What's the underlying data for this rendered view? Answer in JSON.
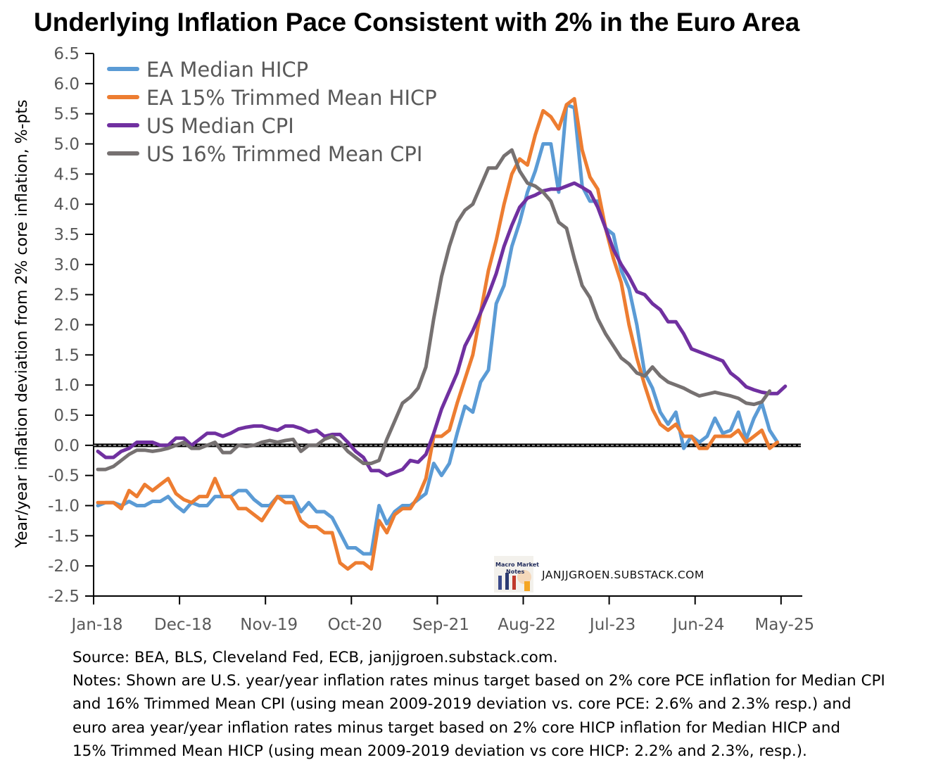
{
  "chart_data": {
    "type": "line",
    "title": "Underlying Inflation Pace Consistent with 2% in the Euro Area",
    "ylabel": "Year/year inflation deviation from 2% core inflation, %-pts",
    "xlabel": "",
    "ylim": [
      -2.5,
      6.5
    ],
    "ytick_step": 0.5,
    "ytick_labels": [
      "6.5",
      "6.0",
      "5.5",
      "5.0",
      "4.5",
      "4.0",
      "3.5",
      "3.0",
      "2.5",
      "2.0",
      "1.5",
      "1.0",
      "0.5",
      "0.0",
      "-0.5",
      "-1.0",
      "-1.5",
      "-2.0",
      "-2.5"
    ],
    "x_start": "Jan-18",
    "x_frequency": "monthly",
    "xtick_labels": [
      "Jan-18",
      "Dec-18",
      "Nov-19",
      "Oct-20",
      "Sep-21",
      "Aug-22",
      "Jul-23",
      "Jun-24",
      "May-25"
    ],
    "xtick_interval_months": 11,
    "legend_position": "top-left",
    "reference_line": 0,
    "series": [
      {
        "name": "EA Median HICP",
        "color": "#5b9bd5",
        "values": [
          -1.0,
          -0.95,
          -0.95,
          -1.0,
          -0.93,
          -1.0,
          -1.0,
          -0.93,
          -0.93,
          -0.85,
          -1.0,
          -1.1,
          -0.95,
          -1.0,
          -1.0,
          -0.85,
          -0.85,
          -0.85,
          -0.75,
          -0.75,
          -0.9,
          -1.0,
          -1.0,
          -0.85,
          -0.85,
          -0.85,
          -1.1,
          -0.95,
          -1.1,
          -1.1,
          -1.2,
          -1.45,
          -1.7,
          -1.7,
          -1.8,
          -1.8,
          -1.0,
          -1.3,
          -1.1,
          -1.0,
          -1.0,
          -0.9,
          -0.8,
          -0.3,
          -0.5,
          -0.3,
          0.2,
          0.65,
          0.55,
          1.05,
          1.25,
          2.35,
          2.65,
          3.3,
          3.7,
          4.2,
          4.55,
          5.0,
          5.0,
          4.2,
          5.65,
          5.6,
          4.3,
          4.05,
          4.05,
          3.6,
          3.5,
          2.9,
          2.6,
          2.0,
          1.2,
          0.95,
          0.55,
          0.35,
          0.55,
          -0.05,
          0.15,
          0.05,
          0.15,
          0.45,
          0.2,
          0.25,
          0.55,
          0.1,
          0.45,
          0.7,
          0.25,
          0.05
        ]
      },
      {
        "name": "EA 15% Trimmed Mean HICP",
        "color": "#ed7d31",
        "values": [
          -0.95,
          -0.95,
          -0.95,
          -1.05,
          -0.75,
          -0.85,
          -0.65,
          -0.75,
          -0.65,
          -0.55,
          -0.8,
          -0.9,
          -0.95,
          -0.85,
          -0.85,
          -0.55,
          -0.85,
          -0.85,
          -1.05,
          -1.05,
          -1.15,
          -1.25,
          -1.05,
          -0.85,
          -0.95,
          -0.95,
          -1.25,
          -1.35,
          -1.35,
          -1.45,
          -1.45,
          -1.95,
          -2.05,
          -1.95,
          -1.95,
          -2.05,
          -1.25,
          -1.45,
          -1.15,
          -1.05,
          -1.05,
          -0.85,
          -0.55,
          0.15,
          0.15,
          0.25,
          0.7,
          1.1,
          1.5,
          2.2,
          2.9,
          3.4,
          4.0,
          4.5,
          4.75,
          4.65,
          5.15,
          5.55,
          5.45,
          5.25,
          5.65,
          5.75,
          4.9,
          4.45,
          4.25,
          3.6,
          3.1,
          2.7,
          2.0,
          1.45,
          1.0,
          0.6,
          0.35,
          0.25,
          0.35,
          0.15,
          0.15,
          -0.05,
          -0.05,
          0.15,
          0.15,
          0.15,
          0.25,
          0.05,
          0.15,
          0.25,
          -0.05,
          0.05
        ]
      },
      {
        "name": "US Median CPI",
        "color": "#7030a0",
        "values": [
          -0.1,
          -0.2,
          -0.2,
          -0.1,
          -0.05,
          0.05,
          0.05,
          0.05,
          0.0,
          0.0,
          0.12,
          0.12,
          0.0,
          0.1,
          0.2,
          0.2,
          0.15,
          0.2,
          0.27,
          0.3,
          0.32,
          0.32,
          0.28,
          0.25,
          0.32,
          0.32,
          0.28,
          0.22,
          0.25,
          0.15,
          0.18,
          0.18,
          0.05,
          -0.1,
          -0.2,
          -0.42,
          -0.42,
          -0.5,
          -0.45,
          -0.4,
          -0.25,
          -0.28,
          -0.15,
          0.2,
          0.6,
          0.9,
          1.2,
          1.65,
          1.9,
          2.2,
          2.5,
          2.85,
          3.3,
          3.65,
          3.95,
          4.1,
          4.15,
          4.22,
          4.25,
          4.25,
          4.3,
          4.35,
          4.28,
          4.2,
          3.95,
          3.6,
          3.25,
          3.0,
          2.8,
          2.55,
          2.5,
          2.35,
          2.25,
          2.05,
          2.05,
          1.85,
          1.6,
          1.55,
          1.5,
          1.45,
          1.4,
          1.2,
          1.1,
          0.97,
          0.92,
          0.88,
          0.86,
          0.86,
          0.98
        ]
      },
      {
        "name": "US 16% Trimmed Mean CPI",
        "color": "#767171",
        "values": [
          -0.4,
          -0.4,
          -0.35,
          -0.25,
          -0.15,
          -0.08,
          -0.08,
          -0.1,
          -0.08,
          -0.05,
          0.0,
          0.05,
          -0.05,
          -0.05,
          0.0,
          0.05,
          -0.12,
          -0.12,
          0.0,
          -0.02,
          0.0,
          0.05,
          0.08,
          0.05,
          0.08,
          0.1,
          -0.1,
          0.0,
          0.0,
          0.1,
          0.15,
          0.05,
          -0.1,
          -0.2,
          -0.3,
          -0.3,
          -0.25,
          0.1,
          0.4,
          0.7,
          0.8,
          0.95,
          1.3,
          2.1,
          2.8,
          3.3,
          3.7,
          3.9,
          4.0,
          4.3,
          4.6,
          4.6,
          4.8,
          4.9,
          4.55,
          4.35,
          4.3,
          4.2,
          4.05,
          3.7,
          3.6,
          3.1,
          2.65,
          2.45,
          2.1,
          1.85,
          1.65,
          1.45,
          1.35,
          1.2,
          1.15,
          1.3,
          1.15,
          1.05,
          1.0,
          0.95,
          0.88,
          0.82,
          0.85,
          0.88,
          0.85,
          0.82,
          0.78,
          0.7,
          0.68,
          0.72,
          0.9
        ]
      }
    ]
  },
  "watermark": {
    "logo_text": "Macro Market Notes",
    "site": "JANJJGROEN.SUBSTACK.COM"
  },
  "footnotes": {
    "source": "Source: BEA, BLS, Cleveland Fed, ECB, janjjgroen.substack.com.",
    "notes": [
      "Notes: Shown are U.S. year/year inflation rates minus target based on 2% core PCE inflation for Median CPI",
      "and 16% Trimmed Mean CPI (using mean 2009-2019 deviation vs. core PCE: 2.6% and 2.3% resp.) and",
      "euro area year/year inflation rates minus target based on 2% core HICP inflation for Median HICP and",
      "15% Trimmed Mean HICP (using mean 2009-2019 deviation vs core HICP: 2.2% and 2.3%, resp.)."
    ]
  }
}
